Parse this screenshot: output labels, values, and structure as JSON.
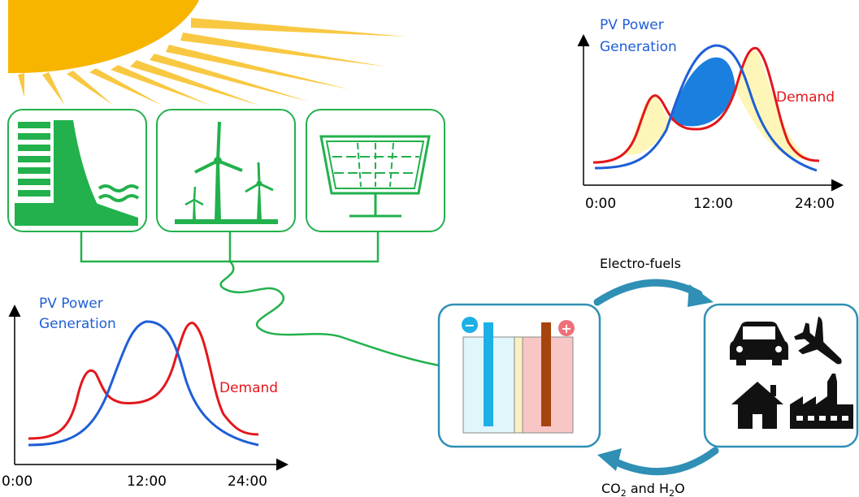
{
  "colors": {
    "green": "#22b14c",
    "blue": "#1f5fd6",
    "red": "#e3171b",
    "sun": "#f7b500",
    "teal": "#2f8fb5",
    "blue_fill": "#1b7fe0",
    "yellow_fill": "#fdf6b8",
    "icon_black": "#111111"
  },
  "icons": {
    "hydro": "hydro-dam-icon",
    "wind": "wind-turbine-icon",
    "solar": "solar-panel-icon",
    "battery": "battery-cell-icon",
    "car": "car-icon",
    "plane": "airplane-icon",
    "house": "house-icon",
    "factory": "factory-icon"
  },
  "chart_top": {
    "pv_label_line1": "PV Power",
    "pv_label_line2": "Generation",
    "demand_label": "Demand",
    "ticks": [
      "0:00",
      "12:00",
      "24:00"
    ]
  },
  "chart_bottom": {
    "pv_label_line1": "PV Power",
    "pv_label_line2": "Generation",
    "demand_label": "Demand",
    "ticks": [
      "0:00",
      "12:00",
      "24:00"
    ]
  },
  "cycle": {
    "top_label": "Electro-fuels",
    "bottom_label_co": "CO",
    "bottom_label_sub2": "2",
    "bottom_label_and": " and H",
    "bottom_label_sub2b": "2",
    "bottom_label_o": "O"
  },
  "battery": {
    "minus": "−",
    "plus": "+"
  }
}
